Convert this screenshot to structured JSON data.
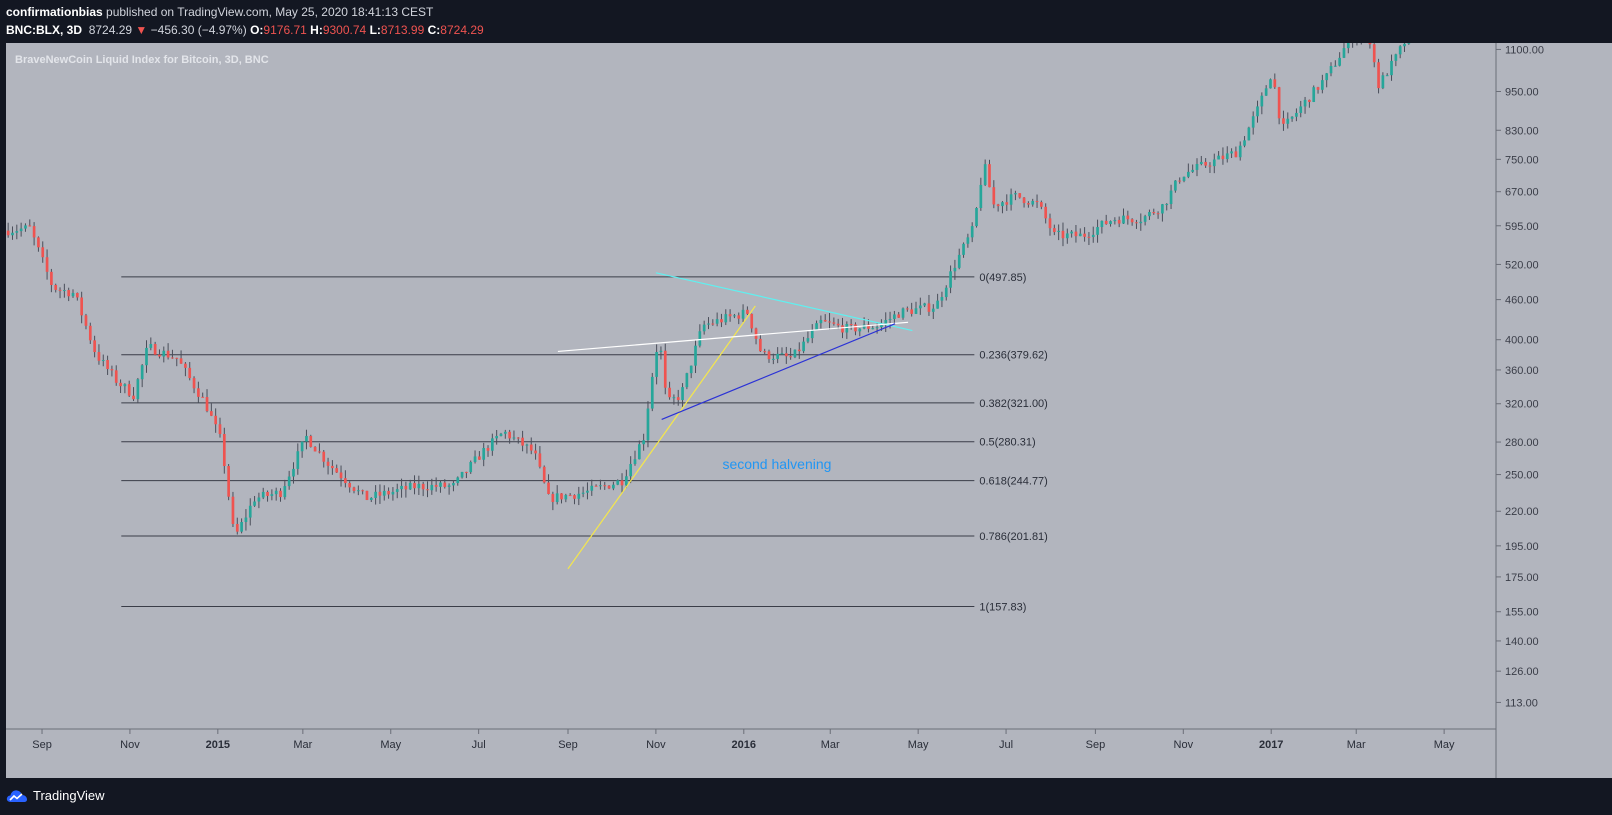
{
  "header": {
    "author": "confirmationbias",
    "published_text": "published on TradingView.com, May 25, 2020 18:41:13 CEST",
    "symbol": "BNC:BLX, 3D",
    "last": "8724.29",
    "change_arrow": "▼",
    "change": "−456.30 (−4.97%)",
    "o_label": "O:",
    "o_value": "9176.71",
    "h_label": "H:",
    "h_value": "9300.74",
    "l_label": "L:",
    "l_value": "8713.99",
    "c_label": "C:",
    "c_value": "8724.29"
  },
  "footer": {
    "brand": "TradingView"
  },
  "colors": {
    "background": "#b2b5be",
    "up": "#26a69a",
    "down": "#ef5350",
    "wick": "#4a4e5a",
    "fib_line": "#3a3d48",
    "yellow_trendline": "#f5e74a",
    "cyan_trendline": "#5ff0f0",
    "white_trendline": "#ffffff",
    "blue_trendline": "#2b32d6",
    "annotation": "#2196f3"
  },
  "chart_data": {
    "type": "candlestick",
    "title": "BraveNewCoin Liquid Index for Bitcoin, 3D, BNC",
    "y_scale": "log",
    "y_range": [
      103,
      1125
    ],
    "y_ticks": [
      "1100.00",
      "950.00",
      "830.00",
      "750.00",
      "670.00",
      "595.00",
      "520.00",
      "460.00",
      "400.00",
      "360.00",
      "320.00",
      "280.00",
      "250.00",
      "220.00",
      "195.00",
      "175.00",
      "155.00",
      "140.00",
      "126.00",
      "113.00"
    ],
    "x_range": [
      "2014-08-07",
      "2017-06-06"
    ],
    "x_ticks": [
      {
        "label": "Sep",
        "date": "2014-09-01"
      },
      {
        "label": "Nov",
        "date": "2014-11-01"
      },
      {
        "label": "2015",
        "date": "2015-01-01"
      },
      {
        "label": "Mar",
        "date": "2015-03-01"
      },
      {
        "label": "May",
        "date": "2015-05-01"
      },
      {
        "label": "Jul",
        "date": "2015-07-01"
      },
      {
        "label": "Sep",
        "date": "2015-09-01"
      },
      {
        "label": "Nov",
        "date": "2015-11-01"
      },
      {
        "label": "2016",
        "date": "2016-01-01"
      },
      {
        "label": "Mar",
        "date": "2016-03-01"
      },
      {
        "label": "May",
        "date": "2016-05-01"
      },
      {
        "label": "Jul",
        "date": "2016-07-01"
      },
      {
        "label": "Sep",
        "date": "2016-09-01"
      },
      {
        "label": "Nov",
        "date": "2016-11-01"
      },
      {
        "label": "2017",
        "date": "2017-01-01"
      },
      {
        "label": "Mar",
        "date": "2017-03-01"
      },
      {
        "label": "May",
        "date": "2017-05-01"
      }
    ],
    "price_path": [
      {
        "date": "2014-08-07",
        "price": 585
      },
      {
        "date": "2014-08-25",
        "price": 590
      },
      {
        "date": "2014-09-10",
        "price": 480
      },
      {
        "date": "2014-09-25",
        "price": 470
      },
      {
        "date": "2014-10-10",
        "price": 380
      },
      {
        "date": "2014-10-25",
        "price": 345
      },
      {
        "date": "2014-11-05",
        "price": 330
      },
      {
        "date": "2014-11-15",
        "price": 390
      },
      {
        "date": "2014-12-05",
        "price": 375
      },
      {
        "date": "2014-12-25",
        "price": 320
      },
      {
        "date": "2015-01-05",
        "price": 280
      },
      {
        "date": "2015-01-14",
        "price": 200
      },
      {
        "date": "2015-01-28",
        "price": 230
      },
      {
        "date": "2015-02-15",
        "price": 235
      },
      {
        "date": "2015-03-05",
        "price": 285
      },
      {
        "date": "2015-03-20",
        "price": 260
      },
      {
        "date": "2015-04-15",
        "price": 230
      },
      {
        "date": "2015-05-20",
        "price": 240
      },
      {
        "date": "2015-06-15",
        "price": 240
      },
      {
        "date": "2015-07-05",
        "price": 270
      },
      {
        "date": "2015-07-20",
        "price": 290
      },
      {
        "date": "2015-08-10",
        "price": 270
      },
      {
        "date": "2015-08-20",
        "price": 230
      },
      {
        "date": "2015-09-15",
        "price": 235
      },
      {
        "date": "2015-10-10",
        "price": 245
      },
      {
        "date": "2015-10-25",
        "price": 285
      },
      {
        "date": "2015-11-02",
        "price": 380
      },
      {
        "date": "2015-11-05",
        "price": 400
      },
      {
        "date": "2015-11-10",
        "price": 320
      },
      {
        "date": "2015-11-20",
        "price": 330
      },
      {
        "date": "2015-12-05",
        "price": 420
      },
      {
        "date": "2015-12-20",
        "price": 430
      },
      {
        "date": "2016-01-05",
        "price": 440
      },
      {
        "date": "2016-01-15",
        "price": 380
      },
      {
        "date": "2016-02-05",
        "price": 375
      },
      {
        "date": "2016-02-25",
        "price": 425
      },
      {
        "date": "2016-03-15",
        "price": 415
      },
      {
        "date": "2016-04-05",
        "price": 420
      },
      {
        "date": "2016-04-20",
        "price": 440
      },
      {
        "date": "2016-05-15",
        "price": 450
      },
      {
        "date": "2016-05-28",
        "price": 520
      },
      {
        "date": "2016-06-10",
        "price": 590
      },
      {
        "date": "2016-06-17",
        "price": 740
      },
      {
        "date": "2016-06-24",
        "price": 640
      },
      {
        "date": "2016-07-10",
        "price": 660
      },
      {
        "date": "2016-07-25",
        "price": 640
      },
      {
        "date": "2016-08-05",
        "price": 575
      },
      {
        "date": "2016-08-25",
        "price": 575
      },
      {
        "date": "2016-09-15",
        "price": 610
      },
      {
        "date": "2016-10-05",
        "price": 610
      },
      {
        "date": "2016-10-20",
        "price": 640
      },
      {
        "date": "2016-11-01",
        "price": 710
      },
      {
        "date": "2016-11-20",
        "price": 740
      },
      {
        "date": "2016-12-10",
        "price": 770
      },
      {
        "date": "2016-12-25",
        "price": 900
      },
      {
        "date": "2017-01-03",
        "price": 1020
      },
      {
        "date": "2017-01-10",
        "price": 830
      },
      {
        "date": "2017-01-25",
        "price": 910
      },
      {
        "date": "2017-02-10",
        "price": 1000
      },
      {
        "date": "2017-02-25",
        "price": 1130
      },
      {
        "date": "2017-03-10",
        "price": 1200
      },
      {
        "date": "2017-03-18",
        "price": 970
      },
      {
        "date": "2017-03-28",
        "price": 1050
      },
      {
        "date": "2017-04-12",
        "price": 1200
      }
    ],
    "fibonacci": {
      "start_date": "2014-10-26",
      "end_date": "2016-06-09",
      "levels": [
        {
          "label": "0(497.85)",
          "price": 497.85
        },
        {
          "label": "0.236(379.62)",
          "price": 379.62
        },
        {
          "label": "0.382(321.00)",
          "price": 321.0
        },
        {
          "label": "0.5(280.31)",
          "price": 280.31
        },
        {
          "label": "0.618(244.77)",
          "price": 244.77
        },
        {
          "label": "0.786(201.81)",
          "price": 201.81
        },
        {
          "label": "1(157.83)",
          "price": 157.83
        }
      ]
    },
    "trendlines": [
      {
        "name": "yellow",
        "p1": {
          "date": "2015-09-01",
          "price": 180
        },
        "p2": {
          "date": "2016-01-09",
          "price": 450
        }
      },
      {
        "name": "cyan",
        "p1": {
          "date": "2015-11-01",
          "price": 505
        },
        "p2": {
          "date": "2016-04-27",
          "price": 413
        }
      },
      {
        "name": "white",
        "p1": {
          "date": "2015-08-25",
          "price": 384
        },
        "p2": {
          "date": "2016-04-24",
          "price": 425
        }
      },
      {
        "name": "blue",
        "p1": {
          "date": "2015-11-05",
          "price": 303
        },
        "p2": {
          "date": "2016-04-15",
          "price": 423
        }
      }
    ],
    "annotations": [
      {
        "text": "second halvening",
        "date": "2016-01-24",
        "price": 255
      }
    ]
  }
}
